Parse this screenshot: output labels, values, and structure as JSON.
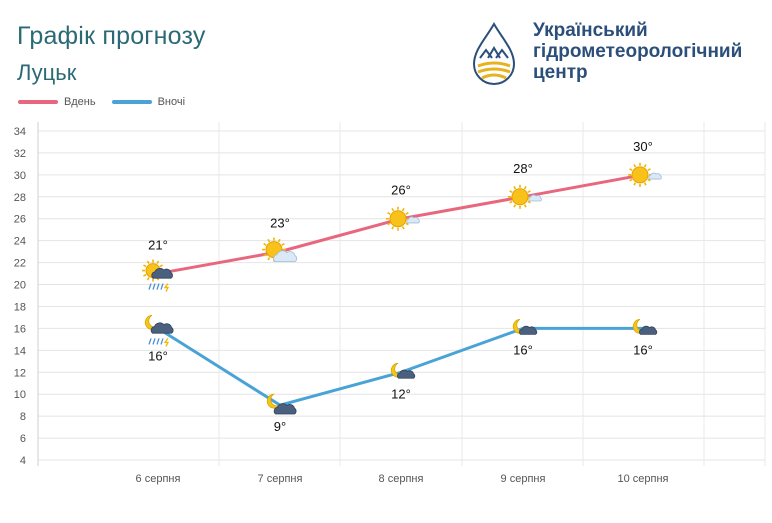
{
  "header": {
    "title": "Графік прогнозу",
    "city": "Луцьк"
  },
  "organization": {
    "line1": "Український",
    "line2": "гідрометеорологічний",
    "line3": "центр"
  },
  "legend": {
    "day_label": "Вдень",
    "night_label": "Вночі"
  },
  "colors": {
    "day": "#e8677f",
    "night": "#4aa3d6",
    "title": "#2b6a75",
    "org": "#2b4f7a"
  },
  "chart_data": {
    "type": "line",
    "categories": [
      "6 серпня",
      "7 серпня",
      "8 серпня",
      "9 серпня",
      "10 серпня"
    ],
    "series": [
      {
        "name": "Вдень",
        "values": [
          21,
          23,
          26,
          28,
          30
        ],
        "labels": [
          "21°",
          "23°",
          "26°",
          "28°",
          "30°"
        ],
        "icons": [
          "partly-cloudy-thunderstorm-icon",
          "sun-cloud-icon",
          "sun-small-cloud-icon",
          "sun-small-cloud-icon",
          "sun-small-cloud-icon"
        ]
      },
      {
        "name": "Вночі",
        "values": [
          16,
          9,
          12,
          16,
          16
        ],
        "labels": [
          "16°",
          "9°",
          "12°",
          "16°",
          "16°"
        ],
        "icons": [
          "moon-cloud-thunderstorm-icon",
          "moon-dark-cloud-icon",
          "moon-cloud-icon",
          "moon-cloud-icon",
          "moon-cloud-icon"
        ]
      }
    ],
    "ylim": [
      4,
      34
    ],
    "yticks": [
      4,
      6,
      8,
      10,
      12,
      14,
      16,
      18,
      20,
      22,
      24,
      26,
      28,
      30,
      32,
      34
    ],
    "grid": true,
    "legend_position": "top-left"
  }
}
